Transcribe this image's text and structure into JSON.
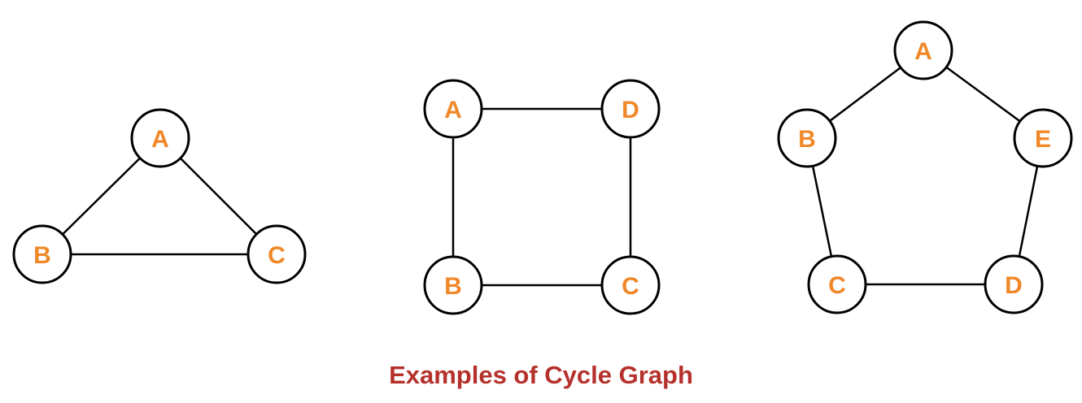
{
  "caption": "Examples of Cycle Graph",
  "colors": {
    "node_label": "#f0882a",
    "caption": "#b5312b",
    "edge": "#000000",
    "node_fill": "#ffffff"
  },
  "graphs": [
    {
      "id": "triangle",
      "nodes": [
        "A",
        "B",
        "C"
      ],
      "edges": [
        [
          "A",
          "B"
        ],
        [
          "B",
          "C"
        ],
        [
          "C",
          "A"
        ]
      ]
    },
    {
      "id": "square",
      "nodes": [
        "A",
        "D",
        "B",
        "C"
      ],
      "edges": [
        [
          "A",
          "D"
        ],
        [
          "D",
          "C"
        ],
        [
          "C",
          "B"
        ],
        [
          "B",
          "A"
        ]
      ]
    },
    {
      "id": "pentagon",
      "nodes": [
        "A",
        "B",
        "E",
        "C",
        "D"
      ],
      "edges": [
        [
          "A",
          "B"
        ],
        [
          "B",
          "C"
        ],
        [
          "C",
          "D"
        ],
        [
          "D",
          "E"
        ],
        [
          "E",
          "A"
        ]
      ]
    }
  ]
}
